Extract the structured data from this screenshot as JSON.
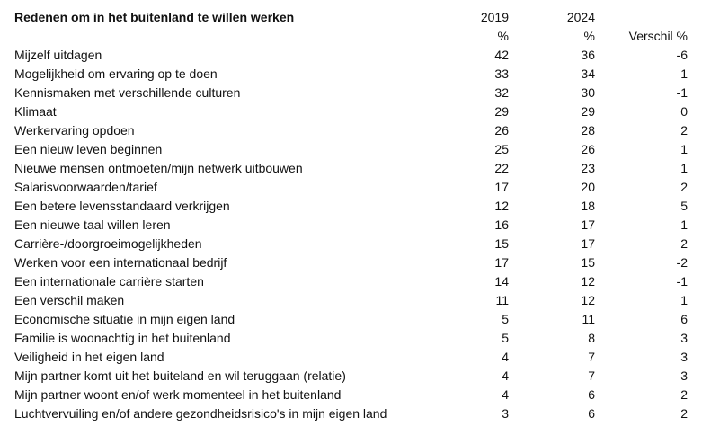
{
  "table": {
    "title": "Redenen om in het buitenland te willen werken",
    "col_2019": "2019",
    "col_2024": "2024",
    "unit_2019": "%",
    "unit_2024": "%",
    "col_diff": "Verschil %",
    "rows": [
      {
        "label": "Mijzelf uitdagen",
        "v2019": "42",
        "v2024": "36",
        "diff": "-6"
      },
      {
        "label": "Mogelijkheid om ervaring op te doen",
        "v2019": "33",
        "v2024": "34",
        "diff": "1"
      },
      {
        "label": "Kennismaken met verschillende culturen",
        "v2019": "32",
        "v2024": "30",
        "diff": "-1"
      },
      {
        "label": "Klimaat",
        "v2019": "29",
        "v2024": "29",
        "diff": "0"
      },
      {
        "label": "Werkervaring opdoen",
        "v2019": "26",
        "v2024": "28",
        "diff": "2"
      },
      {
        "label": "Een nieuw leven beginnen",
        "v2019": "25",
        "v2024": "26",
        "diff": "1"
      },
      {
        "label": "Nieuwe mensen ontmoeten/mijn netwerk uitbouwen",
        "v2019": "22",
        "v2024": "23",
        "diff": "1"
      },
      {
        "label": "Salarisvoorwaarden/tarief",
        "v2019": "17",
        "v2024": "20",
        "diff": "2"
      },
      {
        "label": "Een betere levensstandaard verkrijgen",
        "v2019": "12",
        "v2024": "18",
        "diff": "5"
      },
      {
        "label": "Een nieuwe taal willen leren",
        "v2019": "16",
        "v2024": "17",
        "diff": "1"
      },
      {
        "label": "Carrière-/doorgroeimogelijkheden",
        "v2019": "15",
        "v2024": "17",
        "diff": "2"
      },
      {
        "label": "Werken voor een internationaal bedrijf",
        "v2019": "17",
        "v2024": "15",
        "diff": "-2"
      },
      {
        "label": "Een internationale carrière starten",
        "v2019": "14",
        "v2024": "12",
        "diff": "-1"
      },
      {
        "label": "Een verschil maken",
        "v2019": "11",
        "v2024": "12",
        "diff": "1"
      },
      {
        "label": "Economische situatie in mijn eigen land",
        "v2019": "5",
        "v2024": "11",
        "diff": "6"
      },
      {
        "label": "Familie is woonachtig in het buitenland",
        "v2019": "5",
        "v2024": "8",
        "diff": "3"
      },
      {
        "label": "Veiligheid in het eigen land",
        "v2019": "4",
        "v2024": "7",
        "diff": "3"
      },
      {
        "label": "Mijn partner komt uit het buiteland en wil teruggaan (relatie)",
        "v2019": "4",
        "v2024": "7",
        "diff": "3"
      },
      {
        "label": "Mijn partner woont en/of werk momenteel in het buitenland",
        "v2019": "4",
        "v2024": "6",
        "diff": "2"
      },
      {
        "label": "Luchtvervuiling en/of andere gezondheidsrisico's in mijn eigen land",
        "v2019": "3",
        "v2024": "6",
        "diff": "2"
      }
    ]
  }
}
